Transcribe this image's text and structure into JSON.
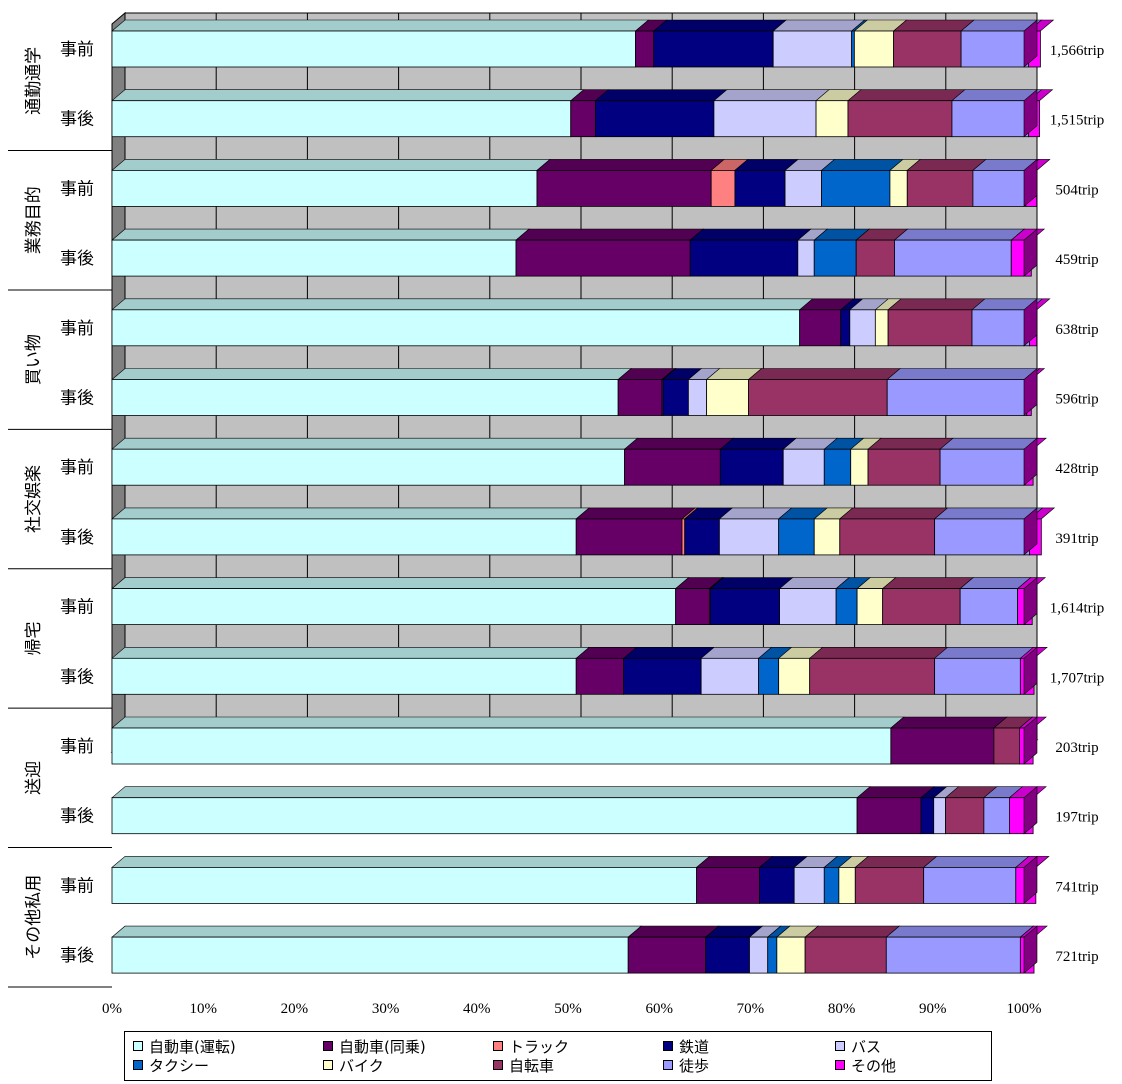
{
  "chart_data": {
    "type": "bar",
    "orientation": "horizontal",
    "stacked": "percent",
    "x_ticks": [
      "0%",
      "10%",
      "20%",
      "30%",
      "40%",
      "50%",
      "60%",
      "70%",
      "80%",
      "90%",
      "100%"
    ],
    "xlim": [
      0,
      100
    ],
    "grid": true,
    "legend_position": "bottom",
    "groups": [
      {
        "label": "通勤通学",
        "rows": [
          {
            "label": "事前",
            "total": "1,566trip",
            "values": [
              57.4,
              2.0,
              0,
              13.1,
              0,
              8.6,
              0.3,
              4.3,
              7.4,
              7.4,
              1.3
            ]
          },
          {
            "label": "事後",
            "total": "1,515trip",
            "values": [
              50.3,
              2.7,
              0,
              13.0,
              0,
              11.2,
              0,
              3.5,
              11.4,
              8.4,
              1.2
            ]
          }
        ]
      },
      {
        "label": "業務目的",
        "rows": [
          {
            "label": "事前",
            "total": "504trip",
            "values": [
              46.6,
              19.1,
              2.6,
              5.5,
              0,
              4.0,
              7.5,
              1.9,
              7.2,
              5.8,
              1.2
            ]
          },
          {
            "label": "事後",
            "total": "459trip",
            "values": [
              44.3,
              19.1,
              0,
              11.8,
              0,
              1.8,
              4.6,
              0,
              4.2,
              12.8,
              2.2
            ]
          }
        ]
      },
      {
        "label": "買い物",
        "rows": [
          {
            "label": "事前",
            "total": "638trip",
            "values": [
              75.4,
              4.5,
              0,
              1.0,
              0,
              2.8,
              0,
              1.4,
              9.2,
              6.3,
              0.8
            ]
          },
          {
            "label": "事後",
            "total": "596trip",
            "values": [
              55.5,
              4.8,
              0.1,
              2.8,
              0,
              2.0,
              0,
              4.6,
              15.2,
              15.3,
              0.5
            ]
          }
        ]
      },
      {
        "label": "社交娯楽",
        "rows": [
          {
            "label": "事前",
            "total": "428trip",
            "values": [
              56.2,
              10.5,
              0,
              6.9,
              0,
              4.5,
              2.9,
              1.9,
              7.9,
              9.3,
              0.9
            ]
          },
          {
            "label": "事後",
            "total": "391trip",
            "values": [
              50.9,
              11.6,
              0.3,
              3.8,
              0,
              6.5,
              3.9,
              2.8,
              10.4,
              10.4,
              1.3
            ]
          }
        ]
      },
      {
        "label": "帰宅",
        "rows": [
          {
            "label": "事前",
            "total": "1,614trip",
            "values": [
              61.8,
              3.7,
              0.1,
              7.6,
              0,
              6.2,
              2.3,
              2.8,
              8.5,
              6.3,
              1.6
            ]
          },
          {
            "label": "事後",
            "total": "1,707trip",
            "values": [
              50.9,
              5.2,
              0,
              8.5,
              0,
              6.3,
              2.2,
              3.4,
              13.7,
              9.4,
              1.5
            ]
          }
        ]
      },
      {
        "label": "送迎",
        "rows": [
          {
            "label": "事前",
            "total": "203trip",
            "values": [
              85.4,
              11.3,
              0,
              0,
              0,
              0,
              0,
              0,
              2.8,
              0,
              1.5
            ]
          },
          {
            "label": "事後",
            "total": "197trip",
            "values": [
              81.7,
              7.0,
              0,
              1.4,
              0,
              1.3,
              0,
              0,
              4.2,
              2.8,
              2.6
            ]
          }
        ]
      },
      {
        "label": "その他私用",
        "rows": [
          {
            "label": "事前",
            "total": "741trip",
            "values": [
              64.1,
              6.9,
              0,
              3.8,
              0,
              3.3,
              1.6,
              1.8,
              7.5,
              10.1,
              2.2
            ]
          },
          {
            "label": "事後",
            "total": "721trip",
            "values": [
              56.6,
              8.5,
              0,
              4.8,
              0,
              2.0,
              1.0,
              3.1,
              8.9,
              14.7,
              1.5
            ]
          }
        ]
      }
    ],
    "series": [
      {
        "name": "自動車(運転)",
        "color": "#ccffff"
      },
      {
        "name": "自動車(同乗)",
        "color": "#660066"
      },
      {
        "name": "トラック",
        "color": "#ff8080"
      },
      {
        "name": "鉄道",
        "color": "#000080"
      },
      {
        "name": "バス",
        "color": "#ccccff"
      },
      {
        "name": "タクシー",
        "color": "#0066cc"
      },
      {
        "name": "バイク",
        "color": "#ffffcc"
      },
      {
        "name": "自転車",
        "color": "#993366"
      },
      {
        "name": "徒歩",
        "color": "#9999ff"
      },
      {
        "name": "その他",
        "color": "#ff00ff"
      }
    ],
    "series_order_in_bar": [
      0,
      1,
      2,
      3,
      null,
      4,
      5,
      6,
      7,
      8,
      9
    ]
  }
}
